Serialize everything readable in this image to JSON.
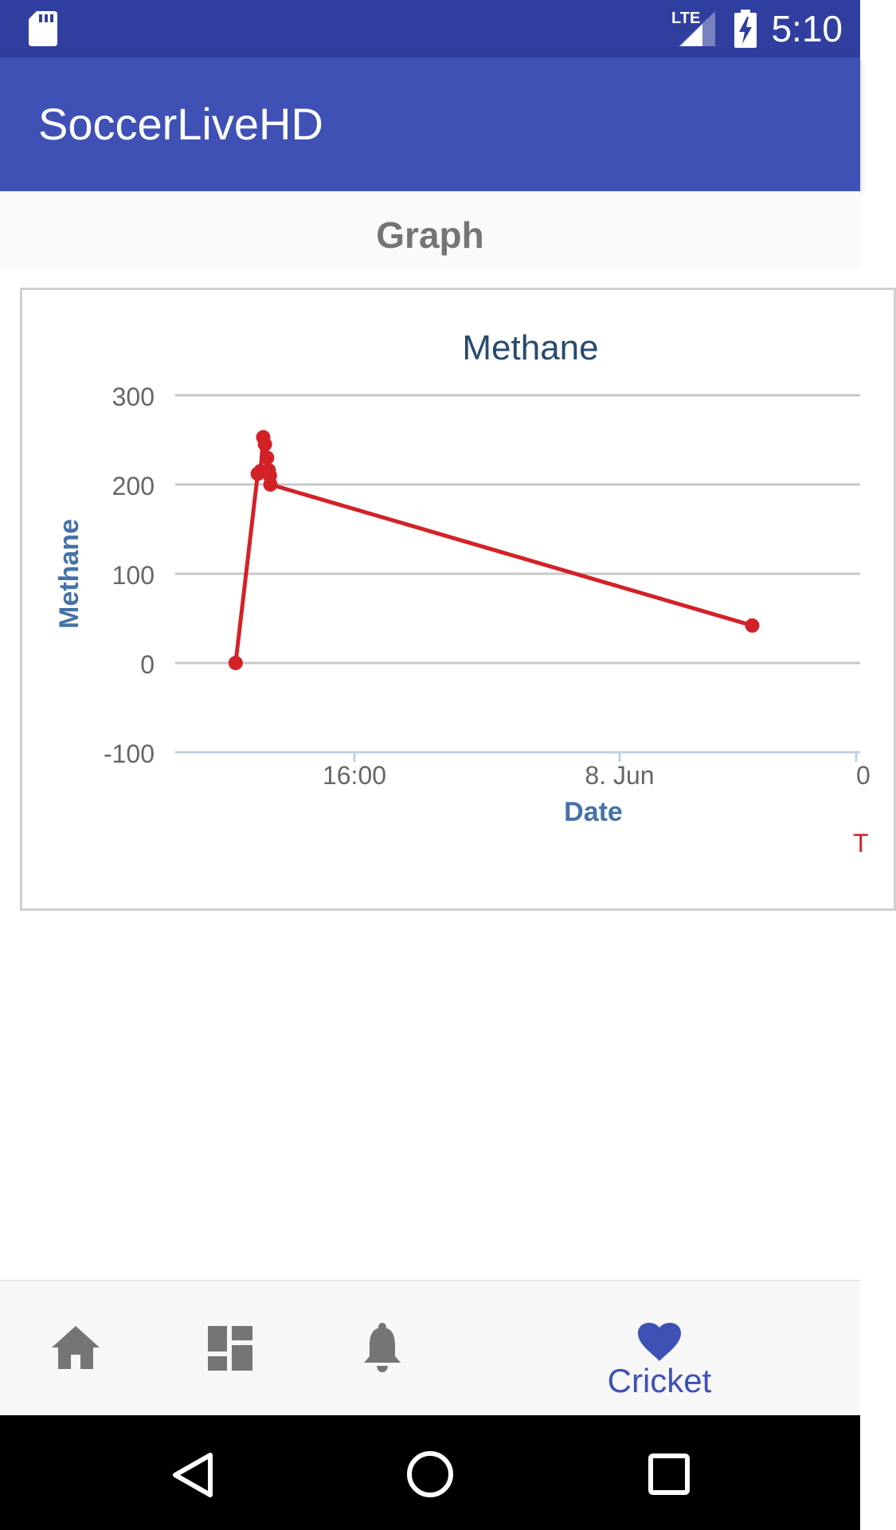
{
  "status_bar": {
    "time": "5:10",
    "network": "LTE",
    "icons": [
      "sd-card-icon",
      "lte-signal-icon",
      "battery-charging-icon"
    ]
  },
  "app_bar": {
    "title": "SoccerLiveHD"
  },
  "graph_header": {
    "label": "Graph"
  },
  "chart_data": {
    "type": "line",
    "title": "Methane",
    "xlabel": "Date",
    "ylabel": "Methane",
    "y_ticks": [
      300,
      200,
      100,
      0,
      -100
    ],
    "ylim": [
      -100,
      300
    ],
    "x_ticks": [
      "16:00",
      "8. Jun",
      "0"
    ],
    "legend_partial": "T",
    "grid": true,
    "series": [
      {
        "color": "#D32227",
        "points": [
          {
            "x": "12:25",
            "y": 0
          },
          {
            "x": "13:05",
            "y": 212
          },
          {
            "x": "13:10",
            "y": 215
          },
          {
            "x": "13:15",
            "y": 253
          },
          {
            "x": "13:18",
            "y": 245
          },
          {
            "x": "13:22",
            "y": 230
          },
          {
            "x": "13:25",
            "y": 216
          },
          {
            "x": "13:27",
            "y": 210
          },
          {
            "x": "13:28",
            "y": 200
          },
          {
            "x": "8. Jun 04:00",
            "y": 42
          }
        ]
      }
    ]
  },
  "bottom_nav": {
    "items": [
      {
        "icon": "home-icon"
      },
      {
        "icon": "dashboard-icon"
      },
      {
        "icon": "bell-icon"
      },
      {
        "icon": "heart-icon",
        "label": "Cricket",
        "active": true
      }
    ],
    "active_color": "#3F51B5",
    "inactive_color": "#757575"
  },
  "system_nav": {
    "icons": [
      "back-icon",
      "home-circle-icon",
      "recents-icon"
    ]
  }
}
